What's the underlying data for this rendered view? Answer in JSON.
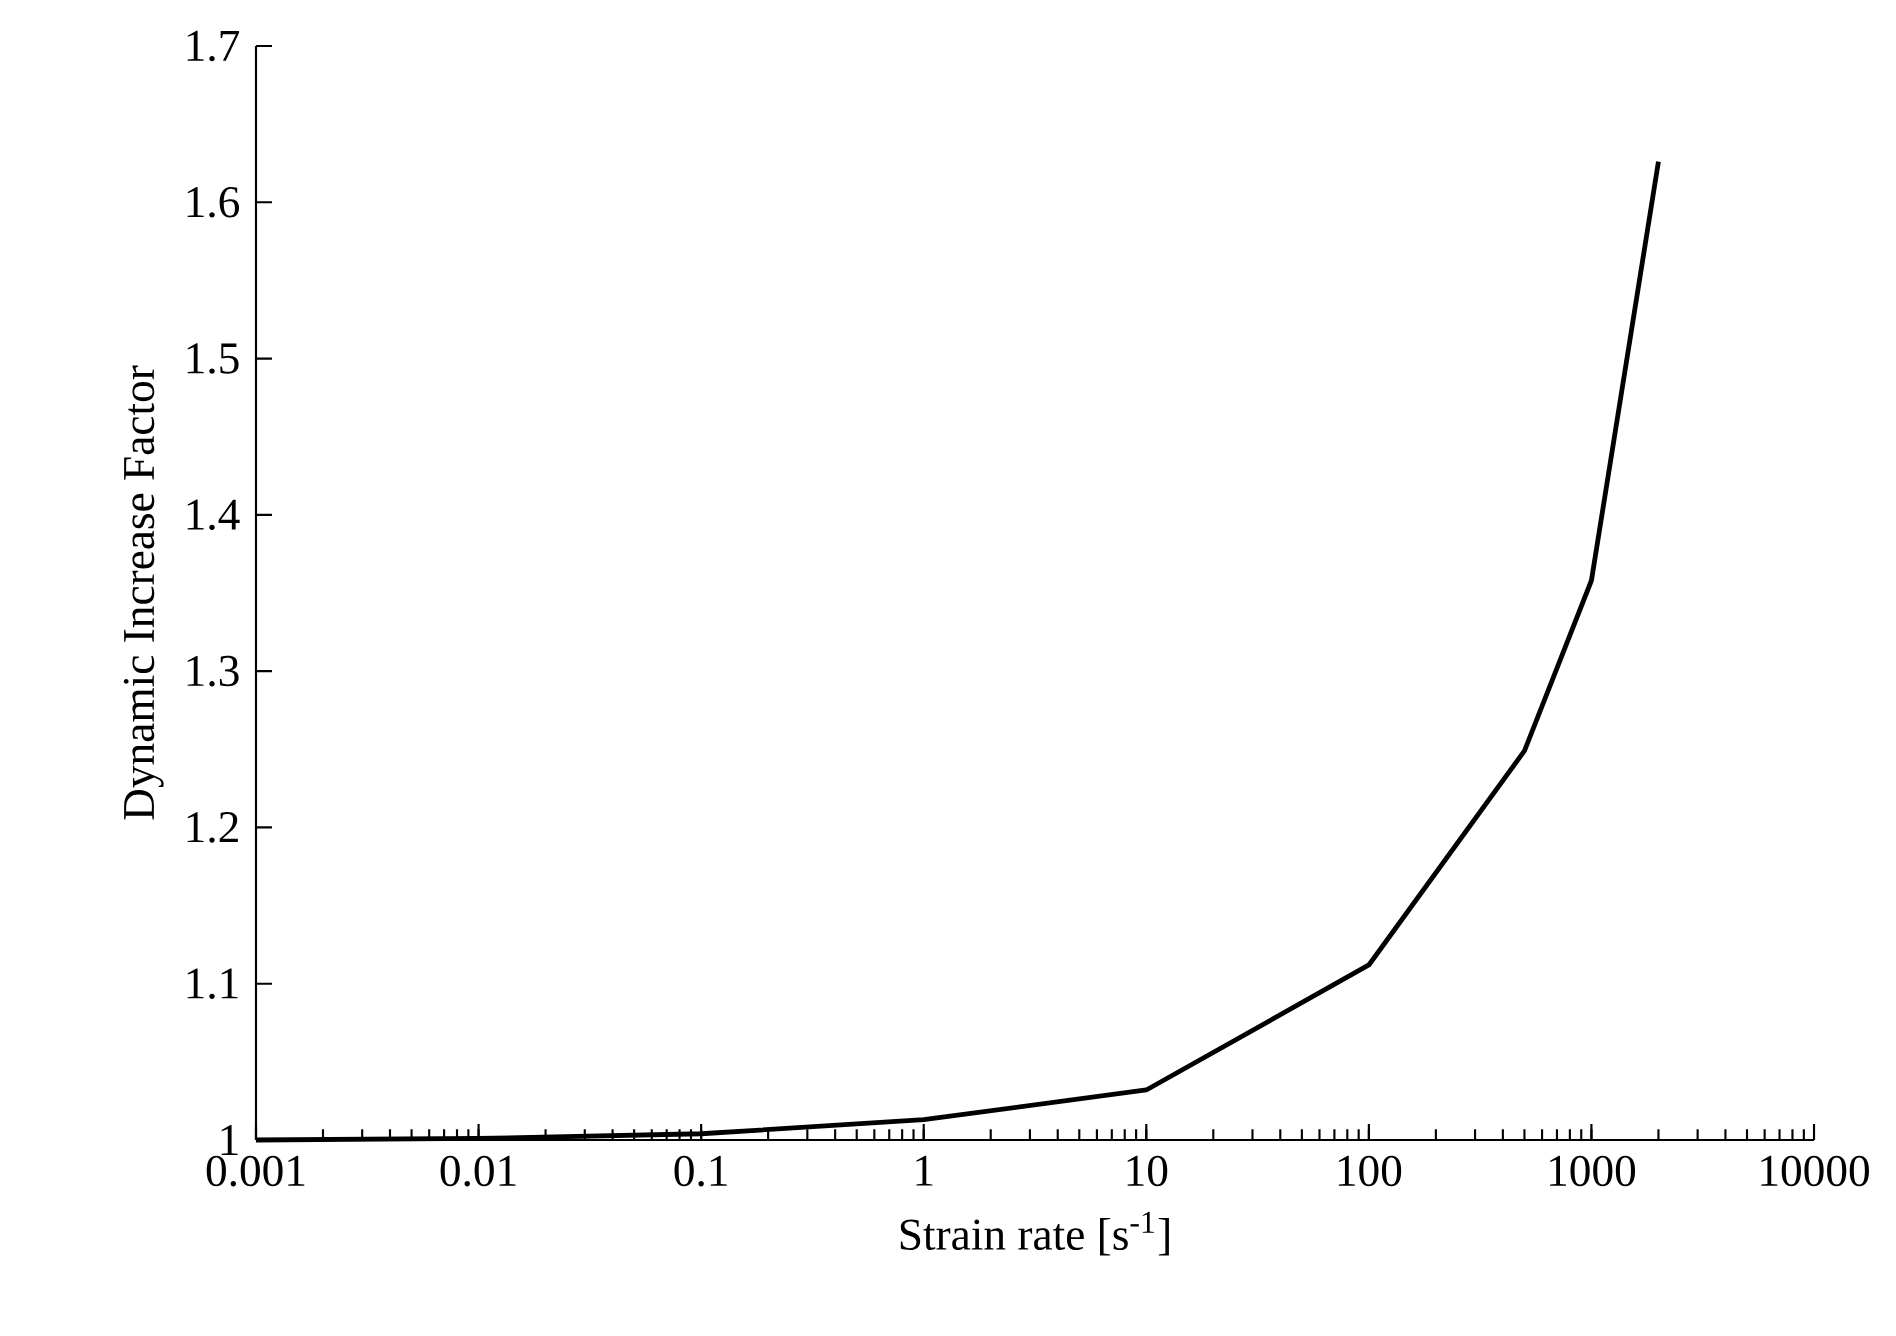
{
  "chart_data": {
    "type": "line",
    "xlabel": "Strain rate [s$^{-1}$]",
    "ylabel": "Dynamic Increase Factor",
    "x": [
      0.001,
      0.01,
      0.1,
      1,
      10,
      100,
      500,
      1000,
      2000
    ],
    "series": [
      {
        "color": "#000000",
        "values": [
          1.0,
          1.001,
          1.004,
          1.013,
          1.032,
          1.112,
          1.249,
          1.358,
          1.626
        ]
      }
    ],
    "log": "x",
    "xlim": [
      0.001,
      10000
    ],
    "xticks": [
      0.001,
      0.01,
      0.1,
      1,
      10,
      100,
      1000,
      10000
    ],
    "ylim": [
      1,
      1.7
    ],
    "yticks": [
      1,
      1.1,
      1.2,
      1.3,
      1.4,
      1.5,
      1.6,
      1.7
    ],
    "grid": false,
    "marker": "none",
    "line_style": "solid"
  }
}
